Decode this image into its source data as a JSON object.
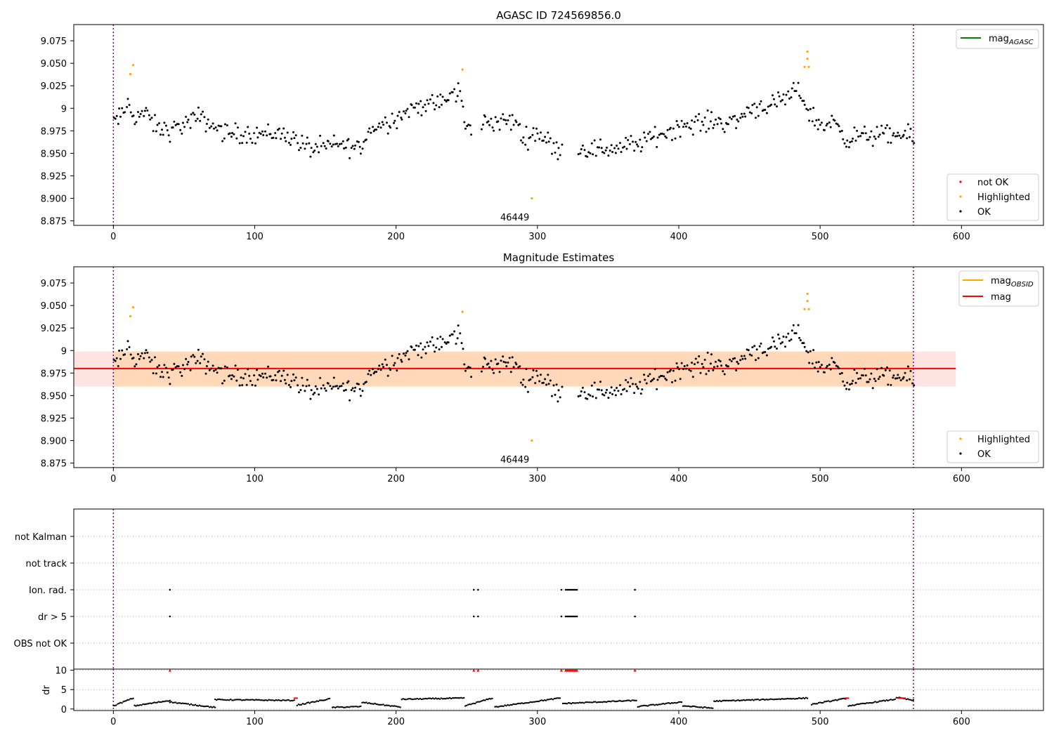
{
  "chart_data": [
    {
      "type": "scatter",
      "title": "AGASC ID 724569856.0",
      "xlim": [
        -28,
        658
      ],
      "ylim": [
        8.87,
        9.093
      ],
      "xticks": [
        0,
        100,
        200,
        300,
        400,
        500,
        600
      ],
      "yticks": [
        8.875,
        8.9,
        8.925,
        8.95,
        8.975,
        9.0,
        9.025,
        9.05,
        9.075
      ],
      "obsid_label": {
        "text": "46449",
        "x": 284,
        "y": 8.877
      },
      "vlines": [
        0,
        566
      ],
      "legend_upper": [
        {
          "label": "mag",
          "sub": "AGASC",
          "color": "#008000"
        }
      ],
      "legend_lower": [
        {
          "label": "not OK",
          "color": "#ff0000"
        },
        {
          "label": "Highlighted",
          "color": "#ffa500"
        },
        {
          "label": "OK",
          "color": "#000000"
        }
      ],
      "highlighted_points": [
        [
          12,
          9.038
        ],
        [
          14,
          9.048
        ],
        [
          247,
          9.043
        ],
        [
          296,
          8.9
        ],
        [
          489,
          9.046
        ],
        [
          491,
          9.055
        ],
        [
          491,
          9.063
        ],
        [
          492,
          9.046
        ]
      ],
      "anchors": [
        [
          0,
          8.985
        ],
        [
          5,
          8.99
        ],
        [
          10,
          9.005
        ],
        [
          15,
          8.99
        ],
        [
          20,
          8.995
        ],
        [
          25,
          8.99
        ],
        [
          30,
          8.978
        ],
        [
          40,
          8.975
        ],
        [
          60,
          8.99
        ],
        [
          80,
          8.972
        ],
        [
          100,
          8.972
        ],
        [
          120,
          8.972
        ],
        [
          140,
          8.955
        ],
        [
          160,
          8.96
        ],
        [
          175,
          8.955
        ],
        [
          180,
          8.975
        ],
        [
          200,
          8.99
        ],
        [
          215,
          9.003
        ],
        [
          230,
          9.005
        ],
        [
          245,
          9.02
        ],
        [
          249,
          8.975
        ],
        [
          260,
          8.985
        ],
        [
          270,
          8.985
        ],
        [
          285,
          8.985
        ],
        [
          290,
          8.965
        ],
        [
          300,
          8.975
        ],
        [
          310,
          8.958
        ],
        [
          318,
          8.955
        ],
        [
          330,
          8.955
        ],
        [
          350,
          8.955
        ],
        [
          370,
          8.96
        ],
        [
          400,
          8.98
        ],
        [
          420,
          8.985
        ],
        [
          440,
          8.985
        ],
        [
          450,
          9.0
        ],
        [
          470,
          9.005
        ],
        [
          485,
          9.02
        ],
        [
          492,
          8.995
        ],
        [
          500,
          8.98
        ],
        [
          510,
          8.985
        ],
        [
          520,
          8.965
        ],
        [
          530,
          8.97
        ],
        [
          560,
          8.97
        ],
        [
          566,
          8.965
        ]
      ],
      "gaps": [
        [
          254,
          259
        ],
        [
          318,
          328
        ]
      ]
    },
    {
      "type": "scatter",
      "title": "Magnitude Estimates",
      "xlim": [
        -28,
        658
      ],
      "ylim": [
        8.87,
        9.093
      ],
      "xticks": [
        0,
        100,
        200,
        300,
        400,
        500,
        600
      ],
      "yticks": [
        8.875,
        8.9,
        8.925,
        8.95,
        8.975,
        9.0,
        9.025,
        9.05,
        9.075
      ],
      "obsid_label": {
        "text": "46449",
        "x": 284,
        "y": 8.877
      },
      "vlines": [
        0,
        566
      ],
      "mag_obsid": {
        "value": 8.98,
        "lo": 8.96,
        "hi": 8.999,
        "x0": 0,
        "x1": 566,
        "color": "#ffa500"
      },
      "mag": {
        "value": 8.98,
        "lo": 8.96,
        "hi": 8.999,
        "x0": -28,
        "x1": 596,
        "color": "#ff0000"
      },
      "legend_upper": [
        {
          "label": "mag",
          "sub": "OBSID",
          "color": "#ffa500"
        },
        {
          "label": "mag",
          "sub": "",
          "color": "#ff0000"
        }
      ],
      "legend_lower": [
        {
          "label": "Highlighted",
          "color": "#ffa500"
        },
        {
          "label": "OK",
          "color": "#000000"
        }
      ]
    },
    {
      "type": "scatter",
      "title": "",
      "xlim": [
        -28,
        658
      ],
      "categories": [
        "OBS not OK",
        "dr > 5",
        "Ion. rad.",
        "not track",
        "not Kalman"
      ],
      "flagged_x": [
        40,
        255,
        258,
        317,
        320,
        321,
        322,
        323,
        324,
        325,
        326,
        327,
        328,
        369
      ],
      "flag_rows": [
        "dr > 5",
        "Ion. rad."
      ]
    },
    {
      "type": "scatter",
      "title": "",
      "ylabel": "dr",
      "xlim": [
        -28,
        658
      ],
      "ylim": [
        -0.4,
        10.3
      ],
      "yticks": [
        0,
        5,
        10
      ],
      "xticks": [
        0,
        100,
        200,
        300,
        400,
        500,
        600
      ],
      "flagged_value": 10,
      "red_segments": [
        [
          128,
          130
        ],
        [
          518,
          520
        ],
        [
          555,
          560
        ]
      ],
      "segments": [
        [
          0,
          14,
          0.8,
          2.8
        ],
        [
          15,
          40,
          0.8,
          2.2
        ],
        [
          40,
          72,
          1.8,
          0.4
        ],
        [
          72,
          128,
          2.4,
          2.2
        ],
        [
          130,
          153,
          1.0,
          2.6
        ],
        [
          155,
          175,
          0.4,
          0.6
        ],
        [
          176,
          203,
          1.7,
          0.5
        ],
        [
          204,
          248,
          2.5,
          2.8
        ],
        [
          249,
          268,
          0.8,
          2.8
        ],
        [
          270,
          316,
          0.5,
          2.8
        ],
        [
          318,
          370,
          1.4,
          2.2
        ],
        [
          371,
          402,
          0.6,
          1.8
        ],
        [
          403,
          424,
          0.8,
          0.2
        ],
        [
          425,
          491,
          2.0,
          2.8
        ],
        [
          494,
          518,
          1.2,
          2.7
        ],
        [
          520,
          553,
          0.8,
          2.5
        ],
        [
          554,
          566,
          3.0,
          2.2
        ]
      ]
    }
  ]
}
